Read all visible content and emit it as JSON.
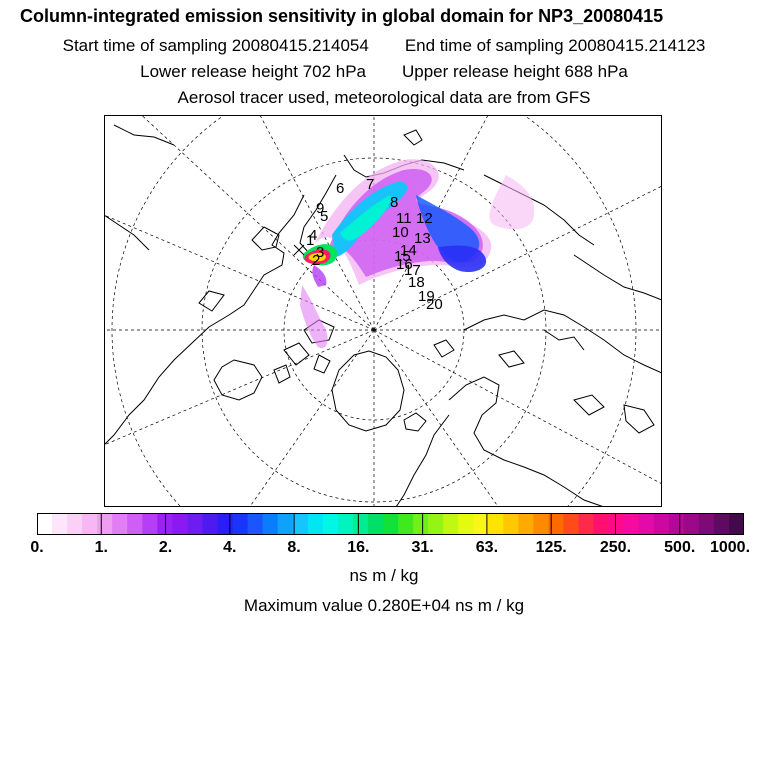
{
  "header": {
    "title": "Column-integrated emission sensitivity in global domain for NP3_20080415",
    "start": "Start time of sampling 20080415.214054",
    "end": "End time of sampling 20080415.214123",
    "lower": "Lower release height  702 hPa",
    "upper": "Upper release height  688 hPa",
    "tracer": "Aerosol tracer used, meteorological data are from GFS"
  },
  "map": {
    "projection": "polar stereographic (north pole)",
    "trajectory_labels": [
      "1",
      "2",
      "3",
      "4",
      "5",
      "6",
      "7",
      "8",
      "9",
      "10",
      "11",
      "12",
      "13",
      "14",
      "15",
      "16",
      "17",
      "18",
      "19",
      "20"
    ]
  },
  "colorbar": {
    "ticks": [
      "0.",
      "1.",
      "2.",
      "4.",
      "8.",
      "16.",
      "31.",
      "63.",
      "125.",
      "250.",
      "500.",
      "1000."
    ],
    "colors": [
      "#ffffff",
      "#fde6fb",
      "#fad0f7",
      "#f6b7f4",
      "#ef9df0",
      "#e27ef3",
      "#cf5ef5",
      "#b63ff5",
      "#9a22f5",
      "#8a19f2",
      "#6d1df1",
      "#4d1bf0",
      "#2a1df5",
      "#1a34fa",
      "#1a56fb",
      "#0a7dfc",
      "#0ea2fd",
      "#16c4fe",
      "#00e6f3",
      "#00f7e8",
      "#00f4c0",
      "#00ec90",
      "#00e066",
      "#10e23a",
      "#40e81e",
      "#6ff01a",
      "#96f414",
      "#c1f812",
      "#e4fb10",
      "#fbf61a",
      "#ffe400",
      "#ffc800",
      "#ffaa00",
      "#ff8a00",
      "#ff6a00",
      "#ff4a1a",
      "#ff2a4a",
      "#ff1070",
      "#ff0a8a",
      "#f60aa0",
      "#e30aa8",
      "#cc08a0",
      "#b50896",
      "#9a0a88",
      "#7e0a78",
      "#5f0a62",
      "#420a4a"
    ],
    "unit": "ns m / kg",
    "max_label": "Maximum value  0.280E+04 ns m / kg"
  }
}
